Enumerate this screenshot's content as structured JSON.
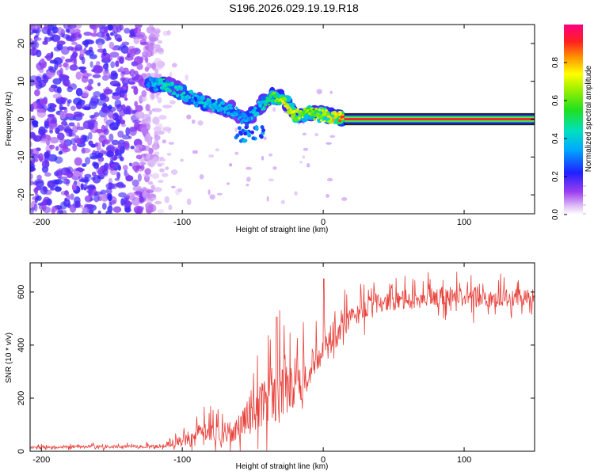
{
  "title": "S196.2026.029.19.19.R18",
  "chart_data": [
    {
      "type": "heatmap",
      "name": "spectrogram",
      "xlabel": "Height of straight line (km)",
      "ylabel": "Frequency (Hz)",
      "xlim": [
        -208,
        150
      ],
      "ylim": [
        -25,
        25
      ],
      "xticks": [
        -200,
        -100,
        0,
        100
      ],
      "yticks": [
        -20,
        -10,
        0,
        10,
        20
      ],
      "xtick_labels": [
        "-200",
        "-100",
        "0",
        "100"
      ],
      "ytick_labels": [
        "-20",
        "-10",
        "0",
        "10",
        "20"
      ],
      "colorbar": {
        "label": "Normalized spectral amplitude",
        "range": [
          0,
          1
        ],
        "ticks": [
          0.0,
          0.2,
          0.4,
          0.6,
          0.8
        ],
        "tick_labels": [
          "0.0",
          "0.2",
          "0.4",
          "0.6",
          "0.8"
        ]
      },
      "noise_region": {
        "x_range": [
          -208,
          -115
        ],
        "freq_range": [
          -25,
          25
        ],
        "amplitude_range": [
          0.05,
          0.2
        ]
      },
      "signal_track": [
        {
          "x": -125,
          "freq": 9.5,
          "amp": 0.3
        },
        {
          "x": -110,
          "freq": 9.0,
          "amp": 0.45
        },
        {
          "x": -100,
          "freq": 7.0,
          "amp": 0.4
        },
        {
          "x": -90,
          "freq": 5.0,
          "amp": 0.35
        },
        {
          "x": -80,
          "freq": 3.5,
          "amp": 0.4
        },
        {
          "x": -65,
          "freq": 2.5,
          "amp": 0.35
        },
        {
          "x": -55,
          "freq": 0.0,
          "amp": 0.3
        },
        {
          "x": -45,
          "freq": 3.5,
          "amp": 0.4
        },
        {
          "x": -35,
          "freq": 6.0,
          "amp": 0.55
        },
        {
          "x": -28,
          "freq": 5.5,
          "amp": 0.7
        },
        {
          "x": -20,
          "freq": 1.0,
          "amp": 0.7
        },
        {
          "x": -10,
          "freq": 1.5,
          "amp": 0.6
        },
        {
          "x": 0,
          "freq": 1.0,
          "amp": 0.7
        },
        {
          "x": 10,
          "freq": 0.5,
          "amp": 0.75
        },
        {
          "x": 15,
          "freq": 0.0,
          "amp": 0.95
        },
        {
          "x": 150,
          "freq": 0.0,
          "amp": 0.95
        }
      ]
    },
    {
      "type": "line",
      "name": "snr",
      "xlabel": "Height of straight line (km)",
      "ylabel": "SNR (10 * v/v)",
      "xlim": [
        -208,
        150
      ],
      "ylim": [
        0,
        710
      ],
      "xticks": [
        -200,
        -100,
        0,
        100
      ],
      "yticks": [
        0,
        200,
        400,
        600
      ],
      "xtick_labels": [
        "-200",
        "-100",
        "0",
        "100"
      ],
      "ytick_labels": [
        "0",
        "200",
        "400",
        "600"
      ],
      "color": "#e8413b",
      "envelope": {
        "x": [
          -208,
          -120,
          -110,
          -100,
          -90,
          -80,
          -70,
          -60,
          -50,
          -40,
          -30,
          -20,
          -10,
          0,
          10,
          20,
          30,
          40,
          60,
          80,
          100,
          120,
          150
        ],
        "base": [
          15,
          18,
          25,
          40,
          55,
          70,
          65,
          90,
          150,
          200,
          230,
          250,
          300,
          380,
          440,
          500,
          540,
          560,
          570,
          580,
          580,
          575,
          580
        ],
        "amplitude": [
          8,
          10,
          20,
          40,
          70,
          80,
          60,
          80,
          140,
          180,
          200,
          150,
          120,
          100,
          80,
          70,
          60,
          55,
          60,
          60,
          60,
          55,
          55
        ]
      }
    }
  ]
}
